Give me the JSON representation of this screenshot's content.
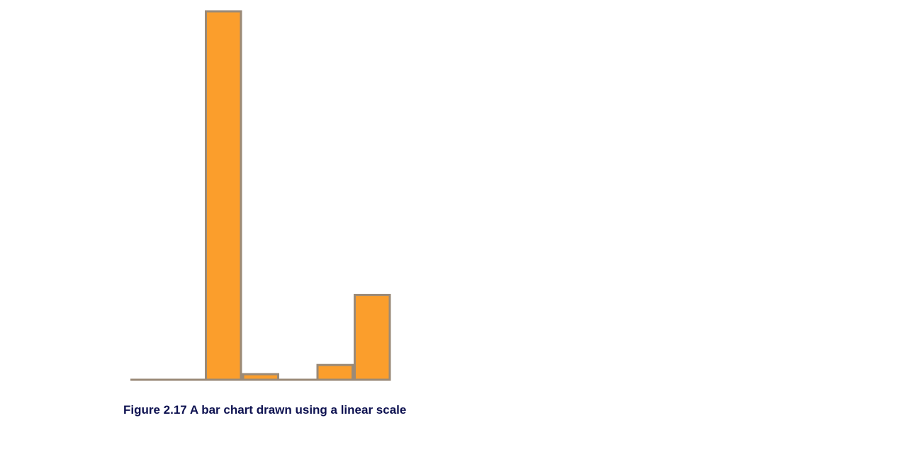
{
  "caption": "Figure 2.17 A bar chart drawn using a linear scale",
  "colors": {
    "bar_fill": "#fb9e2c",
    "bar_outline": "#9a8a78",
    "baseline": "#9a8a78",
    "caption_text": "#0d1150"
  },
  "chart_data": {
    "type": "bar",
    "title": "",
    "xlabel": "",
    "ylabel": "",
    "scale": "linear",
    "categories": [
      "",
      "",
      "",
      "",
      "",
      "",
      ""
    ],
    "values": [
      0,
      0.2,
      100,
      1.5,
      0,
      4,
      23
    ],
    "ylim": [
      0,
      100
    ],
    "grid": false,
    "legend": "none",
    "axis_ticks": false
  }
}
